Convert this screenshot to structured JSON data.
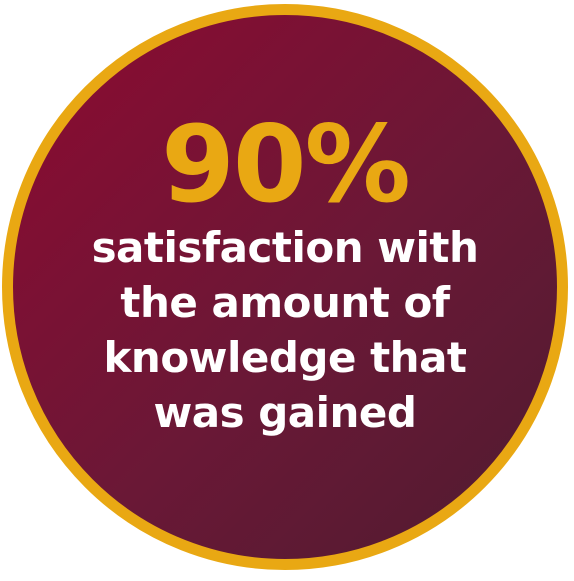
{
  "badge": {
    "value": "90%",
    "caption_lines": [
      "satisfaction with",
      "the amount of",
      "knowledge that",
      "was gained"
    ]
  },
  "colors": {
    "accent": "#e9a813",
    "background_start": "#8d0a31",
    "background_end": "#4f1c30",
    "text": "#ffffff"
  }
}
